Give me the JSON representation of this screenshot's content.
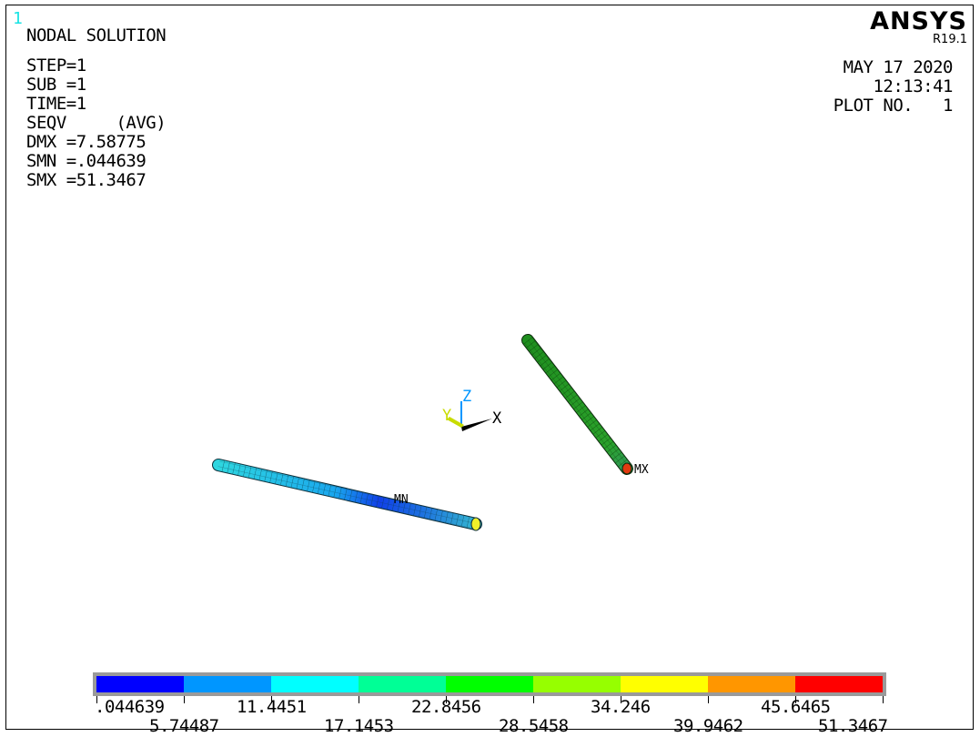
{
  "window": {
    "number": "1"
  },
  "plot": {
    "type_label": "NODAL SOLUTION",
    "info_lines": [
      "STEP=1",
      "SUB =1",
      "TIME=1",
      "SEQV     (AVG)",
      "DMX =7.58775",
      "SMN =.044639",
      "SMX =51.3467"
    ]
  },
  "brand": {
    "logo_text": "ANSYS",
    "version": "R19.1"
  },
  "header_right": {
    "date": "MAY 17 2020",
    "time": "12:13:41",
    "plot_no": "PLOT NO.   1"
  },
  "model": {
    "min_marker": "MN",
    "max_marker": "MX",
    "triad": {
      "x_label": "X",
      "y_label": "Y",
      "z_label": "Z"
    }
  },
  "legend": {
    "colors": [
      "#0000ff",
      "#0096ff",
      "#00ffff",
      "#00ff96",
      "#00ff00",
      "#96ff00",
      "#ffff00",
      "#ff9600",
      "#ff0000"
    ],
    "labels": [
      ".044639",
      "5.74487",
      "11.4451",
      "17.1453",
      "22.8456",
      "28.5458",
      "34.246",
      "39.9462",
      "45.6465",
      "51.3467"
    ]
  },
  "colors": {
    "window_number": "#19e3e3",
    "triad_x": "#ffffff",
    "triad_y": "#c8dc00",
    "triad_z": "#0096ff"
  }
}
